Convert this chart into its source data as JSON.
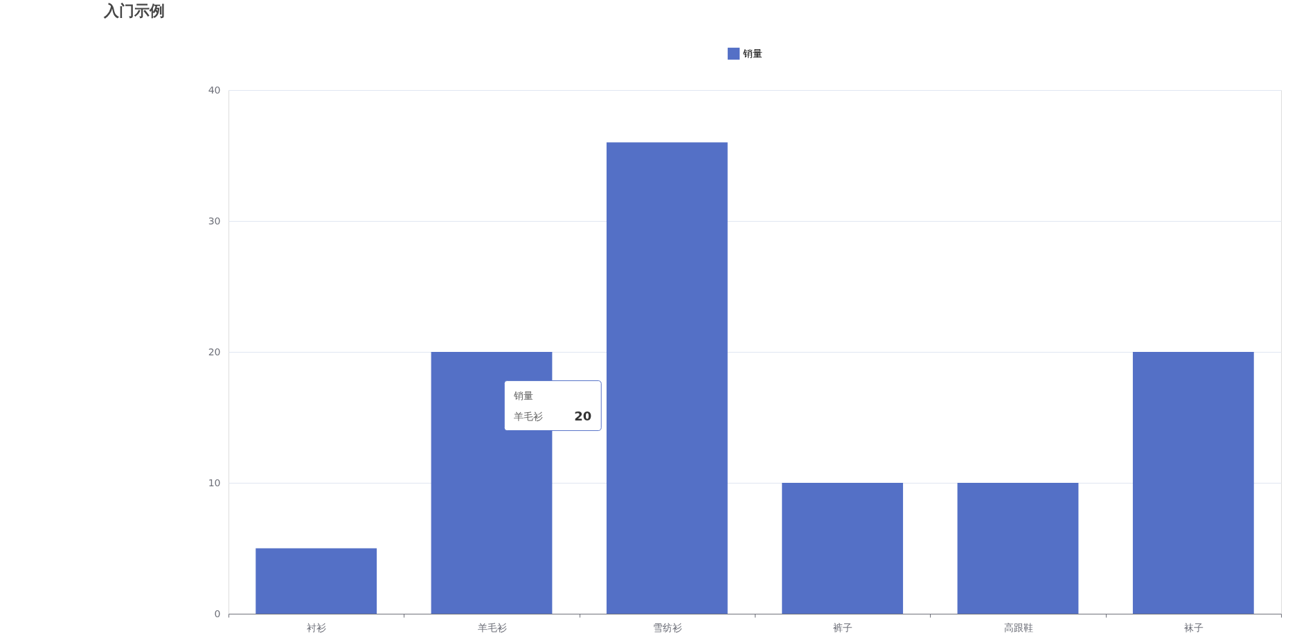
{
  "chart_data": {
    "type": "bar",
    "title": "入门示例",
    "categories": [
      "衬衫",
      "羊毛衫",
      "雪纺衫",
      "裤子",
      "高跟鞋",
      "袜子"
    ],
    "series": [
      {
        "name": "销量",
        "color": "#5470c6",
        "values": [
          5,
          20,
          36,
          10,
          10,
          20
        ]
      }
    ],
    "ylim": [
      0,
      40
    ],
    "yticks": [
      0,
      10,
      20,
      30,
      40
    ],
    "grid": "y",
    "legend": "top",
    "annotations": [
      "销量",
      "羊毛衫",
      "20"
    ]
  }
}
